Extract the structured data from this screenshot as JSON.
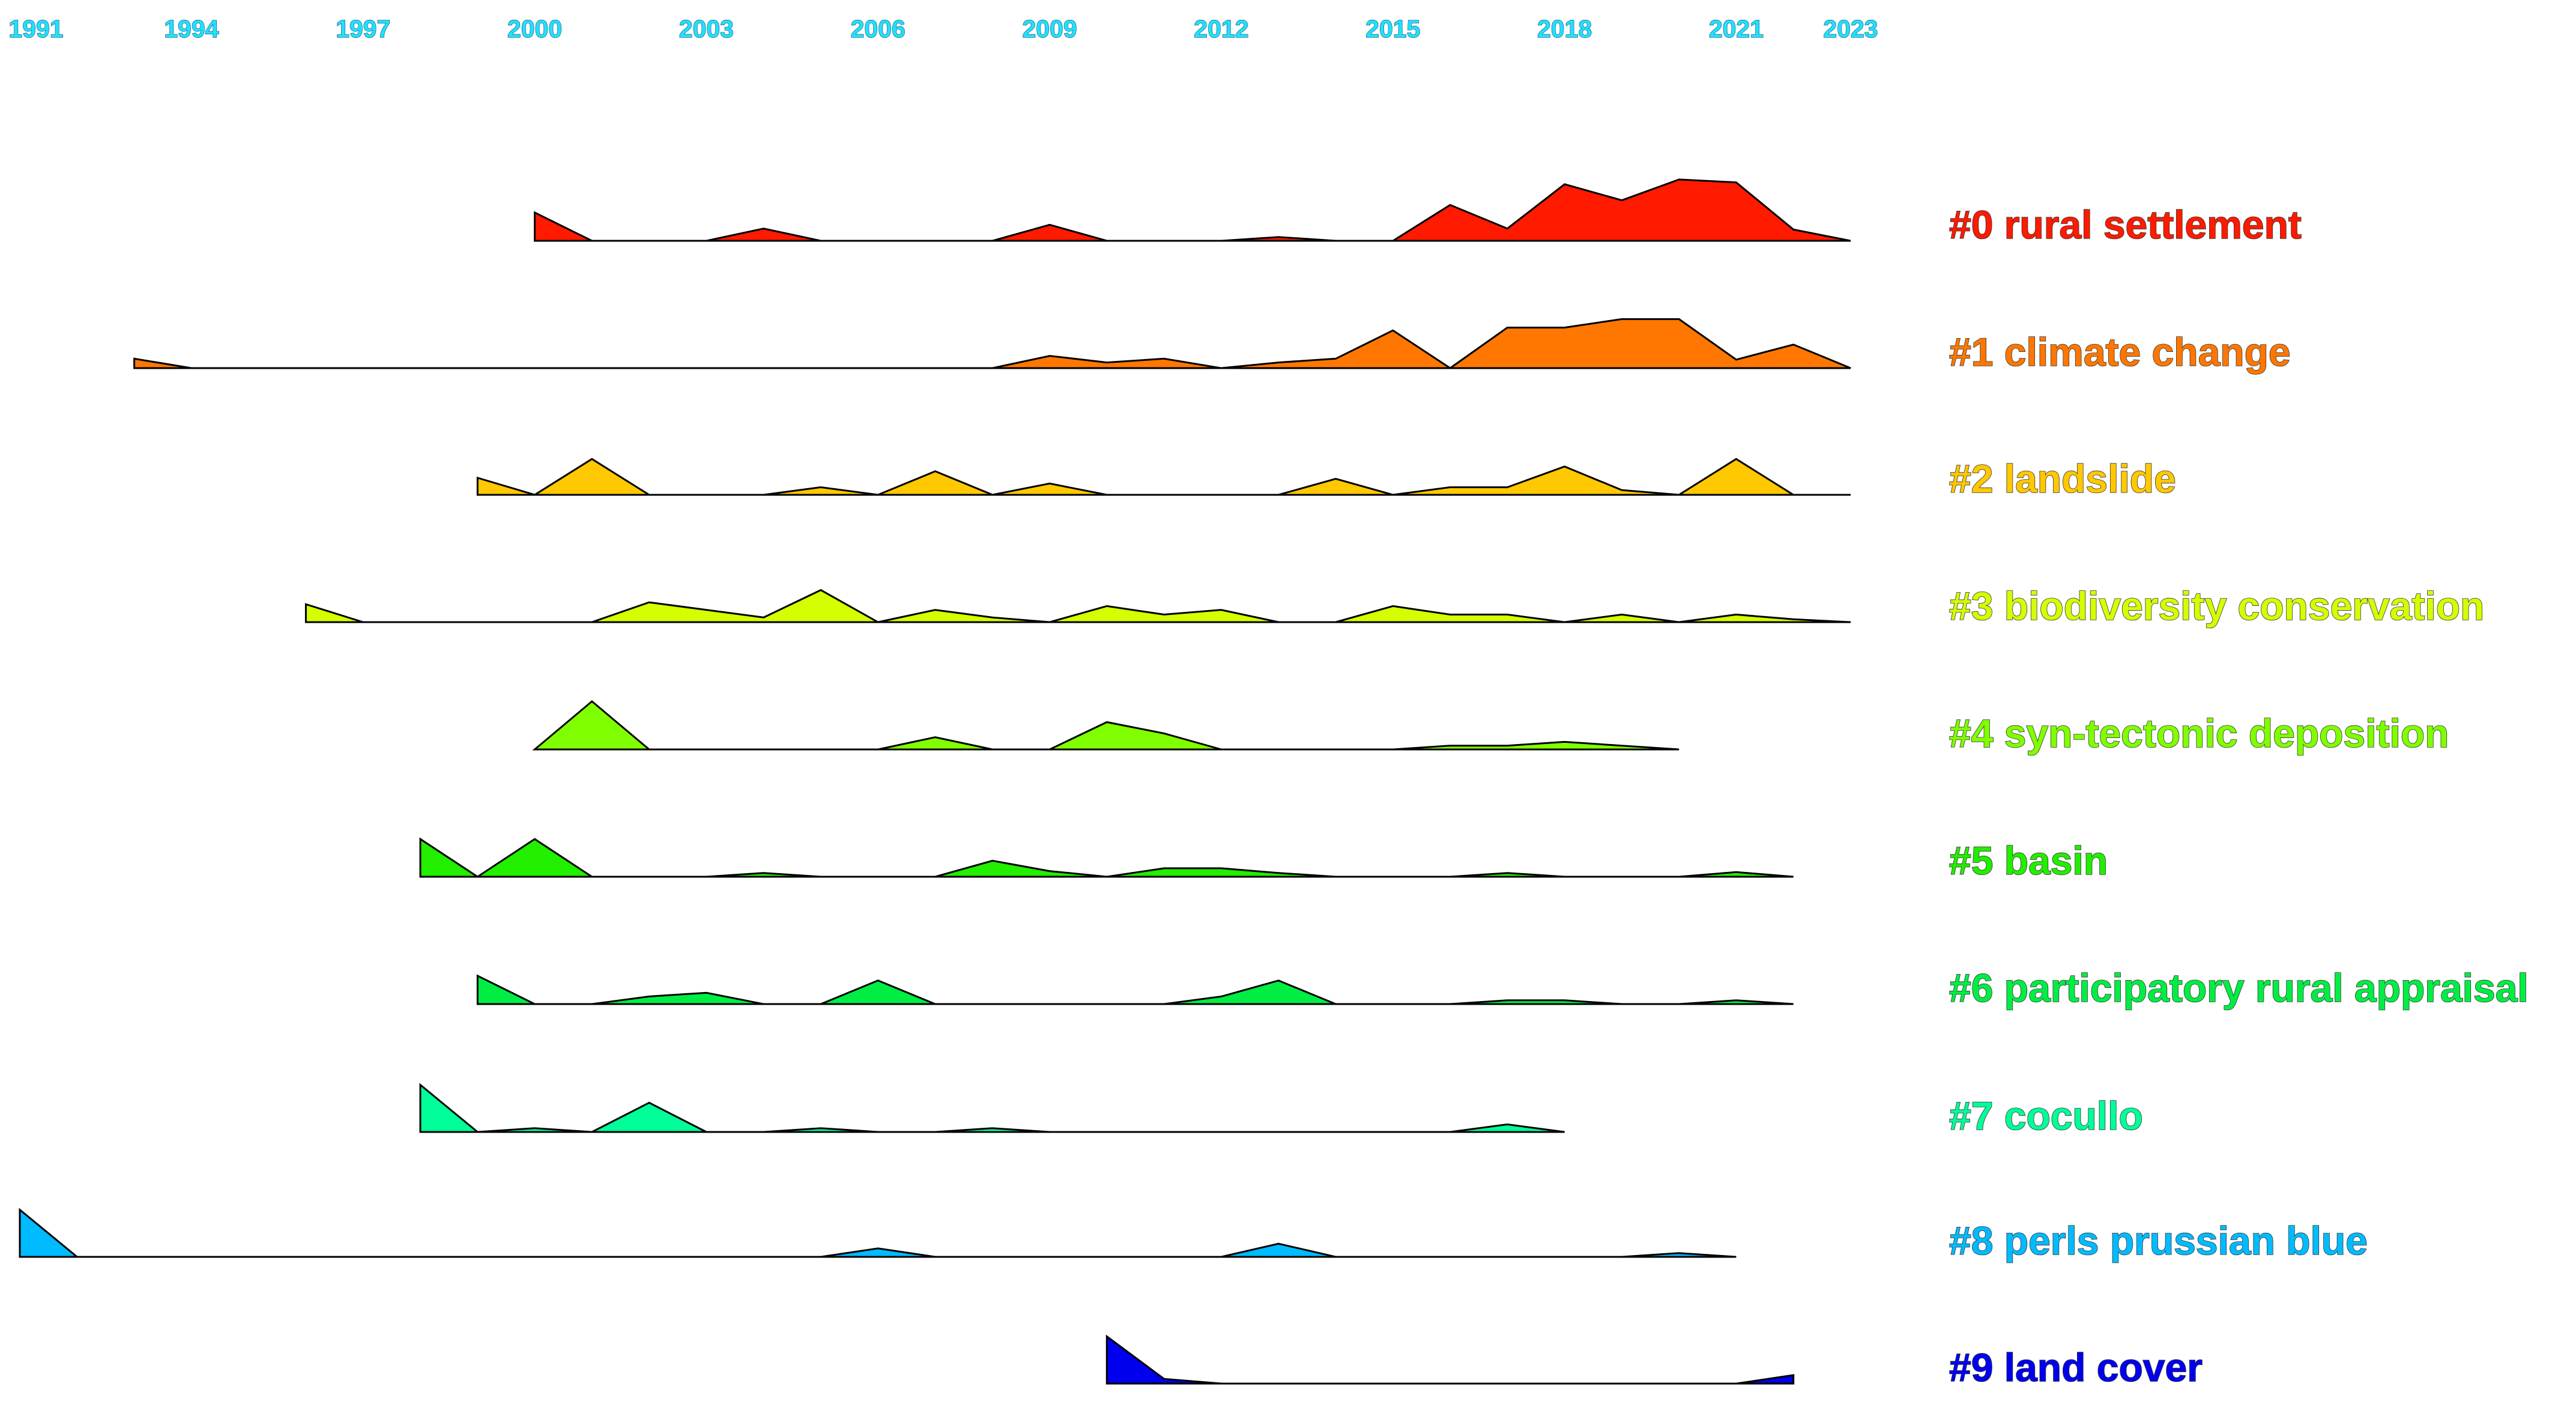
{
  "chart_data": {
    "type": "area",
    "title": "",
    "xlabel": "",
    "ylabel": "",
    "x_range": [
      1991,
      2023
    ],
    "tick_labels": [
      "1991",
      "1994",
      "1997",
      "2000",
      "2003",
      "2006",
      "2009",
      "2012",
      "2015",
      "2018",
      "2021",
      "2023"
    ],
    "tick_years": [
      1991,
      1994,
      1997,
      2000,
      2003,
      2006,
      2009,
      2012,
      2015,
      2018,
      2021,
      2023
    ],
    "y_max": 1.0,
    "series": [
      {
        "name": "#0 rural settlement",
        "color": "#ff1a00",
        "x": [
          2000,
          2001,
          2002,
          2003,
          2004,
          2005,
          2006,
          2007,
          2008,
          2009,
          2010,
          2011,
          2012,
          2013,
          2014,
          2015,
          2016,
          2017,
          2018,
          2019,
          2020,
          2021,
          2022,
          2023
        ],
        "values": [
          0.3,
          0.0,
          0.0,
          0.0,
          0.13,
          0.0,
          0.0,
          0.0,
          0.0,
          0.17,
          0.0,
          0.0,
          0.0,
          0.04,
          0.0,
          0.0,
          0.38,
          0.13,
          0.6,
          0.43,
          0.65,
          0.62,
          0.12,
          0.0
        ]
      },
      {
        "name": "#1 climate change",
        "color": "#ff7700",
        "x": [
          1993,
          1994,
          1995,
          1996,
          1997,
          1998,
          1999,
          2000,
          2001,
          2002,
          2003,
          2004,
          2005,
          2006,
          2007,
          2008,
          2009,
          2010,
          2011,
          2012,
          2013,
          2014,
          2015,
          2016,
          2017,
          2018,
          2019,
          2020,
          2021,
          2022,
          2023
        ],
        "values": [
          0.1,
          0.0,
          0.0,
          0.0,
          0.0,
          0.0,
          0.0,
          0.0,
          0.0,
          0.0,
          0.0,
          0.0,
          0.0,
          0.0,
          0.0,
          0.0,
          0.13,
          0.06,
          0.1,
          0.0,
          0.06,
          0.1,
          0.4,
          0.0,
          0.43,
          0.43,
          0.52,
          0.52,
          0.09,
          0.25,
          0.0
        ]
      },
      {
        "name": "#2 landslide",
        "color": "#ffc800",
        "x": [
          1999,
          2000,
          2001,
          2002,
          2003,
          2004,
          2005,
          2006,
          2007,
          2008,
          2009,
          2010,
          2011,
          2012,
          2013,
          2014,
          2015,
          2016,
          2017,
          2018,
          2019,
          2020,
          2021,
          2022,
          2023
        ],
        "values": [
          0.18,
          0.0,
          0.38,
          0.0,
          0.0,
          0.0,
          0.08,
          0.0,
          0.25,
          0.0,
          0.12,
          0.0,
          0.0,
          0.0,
          0.0,
          0.17,
          0.0,
          0.08,
          0.08,
          0.3,
          0.05,
          0.0,
          0.38,
          0.0,
          0.0
        ]
      },
      {
        "name": "#3 biodiversity conservation",
        "color": "#d4ff00",
        "x": [
          1996,
          1997,
          1998,
          1999,
          2000,
          2001,
          2002,
          2003,
          2004,
          2005,
          2006,
          2007,
          2008,
          2009,
          2010,
          2011,
          2012,
          2013,
          2014,
          2015,
          2016,
          2017,
          2018,
          2019,
          2020,
          2021,
          2022,
          2023
        ],
        "values": [
          0.19,
          0.0,
          0.0,
          0.0,
          0.0,
          0.0,
          0.21,
          0.13,
          0.05,
          0.34,
          0.0,
          0.13,
          0.05,
          0.0,
          0.17,
          0.08,
          0.13,
          0.0,
          0.0,
          0.17,
          0.08,
          0.08,
          0.0,
          0.08,
          0.0,
          0.08,
          0.03,
          0.0
        ]
      },
      {
        "name": "#4 syn-tectonic deposition",
        "color": "#80ff00",
        "x": [
          2000,
          2001,
          2002,
          2003,
          2004,
          2005,
          2006,
          2007,
          2008,
          2009,
          2010,
          2011,
          2012,
          2013,
          2014,
          2015,
          2016,
          2017,
          2018,
          2019,
          2020
        ],
        "values": [
          0.0,
          0.51,
          0.0,
          0.0,
          0.0,
          0.0,
          0.0,
          0.13,
          0.0,
          0.0,
          0.29,
          0.17,
          0.0,
          0.0,
          0.0,
          0.0,
          0.04,
          0.04,
          0.08,
          0.04,
          0.0
        ]
      },
      {
        "name": "#5 basin",
        "color": "#22ee00",
        "x": [
          1998,
          1999,
          2000,
          2001,
          2002,
          2003,
          2004,
          2005,
          2006,
          2007,
          2008,
          2009,
          2010,
          2011,
          2012,
          2013,
          2014,
          2015,
          2016,
          2017,
          2018,
          2019,
          2020,
          2021,
          2022
        ],
        "values": [
          0.4,
          0.0,
          0.4,
          0.0,
          0.0,
          0.0,
          0.04,
          0.0,
          0.0,
          0.0,
          0.17,
          0.06,
          0.0,
          0.09,
          0.09,
          0.04,
          0.0,
          0.0,
          0.0,
          0.04,
          0.0,
          0.0,
          0.0,
          0.05,
          0.0
        ]
      },
      {
        "name": "#6 participatory rural appraisal",
        "color": "#00ee44",
        "x": [
          1999,
          2000,
          2001,
          2002,
          2003,
          2004,
          2005,
          2006,
          2007,
          2008,
          2009,
          2010,
          2011,
          2012,
          2013,
          2014,
          2015,
          2016,
          2017,
          2018,
          2019,
          2020,
          2021,
          2022
        ],
        "values": [
          0.3,
          0.0,
          0.0,
          0.08,
          0.12,
          0.0,
          0.0,
          0.25,
          0.0,
          0.0,
          0.0,
          0.0,
          0.0,
          0.08,
          0.25,
          0.0,
          0.0,
          0.0,
          0.04,
          0.04,
          0.0,
          0.0,
          0.04,
          0.0
        ]
      },
      {
        "name": "#7 cocullo",
        "color": "#00ff99",
        "x": [
          1998,
          1999,
          2000,
          2001,
          2002,
          2003,
          2004,
          2005,
          2006,
          2007,
          2008,
          2009,
          2010,
          2011,
          2012,
          2013,
          2014,
          2015,
          2016,
          2017,
          2018
        ],
        "values": [
          0.5,
          0.0,
          0.04,
          0.0,
          0.31,
          0.0,
          0.0,
          0.04,
          0.0,
          0.0,
          0.04,
          0.0,
          0.0,
          0.0,
          0.0,
          0.0,
          0.0,
          0.0,
          0.0,
          0.08,
          0.0
        ]
      },
      {
        "name": "#8 perls prussian blue",
        "color": "#00bbff",
        "x": [
          1991,
          1992,
          1993,
          1994,
          1995,
          1996,
          1997,
          1998,
          1999,
          2000,
          2001,
          2002,
          2003,
          2004,
          2005,
          2006,
          2007,
          2008,
          2009,
          2010,
          2011,
          2012,
          2013,
          2014,
          2015,
          2016,
          2017,
          2018,
          2019,
          2020,
          2021
        ],
        "values": [
          0.5,
          0.0,
          0.0,
          0.0,
          0.0,
          0.0,
          0.0,
          0.0,
          0.0,
          0.0,
          0.0,
          0.0,
          0.0,
          0.0,
          0.0,
          0.09,
          0.0,
          0.0,
          0.0,
          0.0,
          0.0,
          0.0,
          0.14,
          0.0,
          0.0,
          0.0,
          0.0,
          0.0,
          0.0,
          0.04,
          0.0
        ]
      },
      {
        "name": "#9 land cover",
        "color": "#0000ee",
        "x": [
          2010,
          2011,
          2012,
          2013,
          2014,
          2015,
          2016,
          2017,
          2018,
          2019,
          2020,
          2021,
          2022
        ],
        "values": [
          0.5,
          0.05,
          0.0,
          0.0,
          0.0,
          0.0,
          0.0,
          0.0,
          0.0,
          0.0,
          0.0,
          0.0,
          0.09
        ]
      }
    ]
  }
}
